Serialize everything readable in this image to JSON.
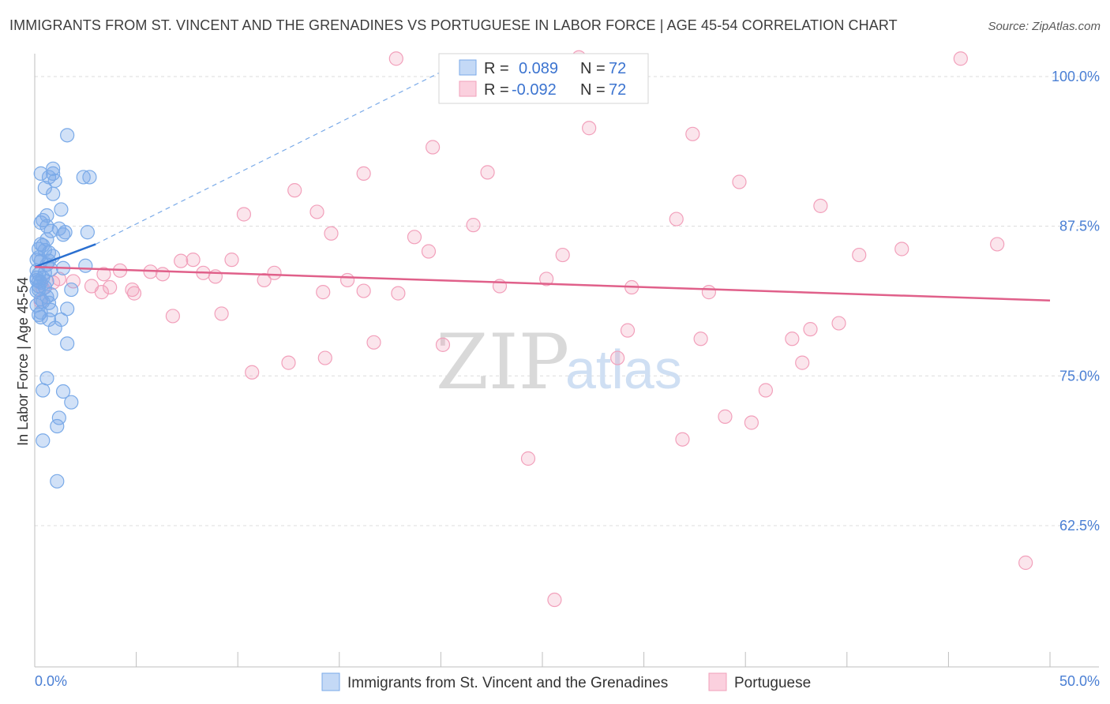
{
  "title": "IMMIGRANTS FROM ST. VINCENT AND THE GRENADINES VS PORTUGUESE IN LABOR FORCE | AGE 45-54 CORRELATION CHART",
  "source": "Source: ZipAtlas.com",
  "watermark": {
    "part1": "ZIP",
    "part2": "atlas"
  },
  "stats": [
    {
      "r_label": "R =",
      "r_value": "0.089",
      "n_label": "N =",
      "n_value": "72",
      "color": "#7aaae8"
    },
    {
      "r_label": "R =",
      "r_value": "-0.092",
      "n_label": "N =",
      "n_value": "72",
      "color": "#f2a0bb"
    }
  ],
  "chart_data": {
    "type": "scatter",
    "title": "IMMIGRANTS FROM ST. VINCENT AND THE GRENADINES VS PORTUGUESE IN LABOR FORCE | AGE 45-54 CORRELATION CHART",
    "xlabel": "",
    "ylabel": "In Labor Force | Age 45-54",
    "xlim": [
      0,
      50
    ],
    "ylim": [
      50.7,
      102.5
    ],
    "x_tick_labels": [
      "0.0%",
      "50.0%"
    ],
    "y_ticks": [
      62.5,
      75.0,
      87.5,
      100.0
    ],
    "y_tick_labels": [
      "62.5%",
      "75.0%",
      "87.5%",
      "100.0%"
    ],
    "grid": true,
    "legend_position": "bottom-center",
    "series": [
      {
        "name": "Immigrants from St. Vincent and the Grenadines",
        "color": "#7aaae8",
        "line_color": "#2a6fd0",
        "trend_solid": [
          [
            0,
            84.1
          ],
          [
            3,
            86.0
          ]
        ],
        "trend_dashed": [
          [
            3,
            86.0
          ],
          [
            20.5,
            100.8
          ]
        ],
        "points": [
          [
            1.6,
            95.1
          ],
          [
            0.9,
            92.3
          ],
          [
            0.3,
            91.9
          ],
          [
            0.9,
            91.9
          ],
          [
            0.7,
            91.6
          ],
          [
            1.0,
            91.3
          ],
          [
            2.4,
            91.6
          ],
          [
            2.7,
            91.6
          ],
          [
            0.5,
            90.7
          ],
          [
            0.9,
            90.2
          ],
          [
            1.3,
            88.9
          ],
          [
            0.6,
            88.4
          ],
          [
            0.3,
            87.8
          ],
          [
            0.4,
            88.0
          ],
          [
            0.6,
            87.5
          ],
          [
            0.8,
            87.1
          ],
          [
            1.2,
            87.3
          ],
          [
            1.5,
            87.0
          ],
          [
            1.4,
            86.8
          ],
          [
            2.6,
            87.0
          ],
          [
            0.6,
            86.4
          ],
          [
            0.2,
            85.6
          ],
          [
            0.3,
            86.0
          ],
          [
            0.5,
            85.5
          ],
          [
            0.7,
            85.3
          ],
          [
            0.1,
            84.7
          ],
          [
            0.3,
            84.6
          ],
          [
            0.6,
            84.3
          ],
          [
            0.8,
            83.9
          ],
          [
            0.1,
            83.8
          ],
          [
            0.2,
            83.5
          ],
          [
            0.4,
            83.2
          ],
          [
            0.1,
            83.0
          ],
          [
            0.3,
            82.8
          ],
          [
            0.2,
            82.5
          ],
          [
            0.1,
            82.1
          ],
          [
            0.5,
            82.4
          ],
          [
            1.8,
            82.2
          ],
          [
            0.6,
            81.6
          ],
          [
            0.3,
            81.4
          ],
          [
            0.7,
            81.1
          ],
          [
            0.1,
            80.9
          ],
          [
            1.6,
            80.6
          ],
          [
            0.8,
            80.5
          ],
          [
            0.2,
            80.1
          ],
          [
            0.3,
            79.9
          ],
          [
            0.7,
            79.7
          ],
          [
            1.3,
            79.7
          ],
          [
            1.0,
            79.0
          ],
          [
            1.6,
            77.7
          ],
          [
            0.6,
            74.8
          ],
          [
            0.4,
            73.8
          ],
          [
            1.4,
            73.7
          ],
          [
            1.8,
            72.8
          ],
          [
            1.2,
            71.5
          ],
          [
            1.1,
            70.8
          ],
          [
            0.4,
            69.6
          ],
          [
            1.1,
            66.2
          ],
          [
            2.5,
            84.2
          ],
          [
            0.2,
            84.9
          ],
          [
            0.4,
            85.9
          ],
          [
            0.9,
            85.0
          ],
          [
            1.4,
            84.0
          ],
          [
            0.2,
            82.9
          ],
          [
            0.5,
            83.6
          ],
          [
            0.3,
            80.3
          ],
          [
            0.8,
            81.8
          ],
          [
            0.2,
            82.2
          ],
          [
            0.6,
            82.9
          ],
          [
            0.4,
            81.2
          ],
          [
            0.1,
            83.2
          ],
          [
            0.7,
            84.6
          ]
        ]
      },
      {
        "name": "Portuguese",
        "color": "#f2a0bb",
        "line_color": "#e0608a",
        "trend_solid": [
          [
            0,
            84.1
          ],
          [
            50,
            81.3
          ]
        ],
        "points": [
          [
            17.8,
            101.5
          ],
          [
            26.8,
            101.6
          ],
          [
            45.6,
            101.5
          ],
          [
            27.3,
            95.7
          ],
          [
            32.4,
            95.2
          ],
          [
            19.6,
            94.1
          ],
          [
            16.2,
            91.9
          ],
          [
            22.3,
            92.0
          ],
          [
            34.7,
            91.2
          ],
          [
            12.8,
            90.5
          ],
          [
            38.7,
            89.2
          ],
          [
            10.3,
            88.5
          ],
          [
            13.9,
            88.7
          ],
          [
            21.6,
            87.6
          ],
          [
            31.6,
            88.1
          ],
          [
            14.6,
            86.9
          ],
          [
            18.7,
            86.6
          ],
          [
            19.4,
            85.4
          ],
          [
            47.4,
            86.0
          ],
          [
            42.7,
            85.6
          ],
          [
            40.6,
            85.1
          ],
          [
            26.0,
            85.1
          ],
          [
            7.2,
            84.6
          ],
          [
            7.8,
            84.7
          ],
          [
            9.7,
            84.7
          ],
          [
            4.2,
            83.8
          ],
          [
            5.7,
            83.7
          ],
          [
            6.3,
            83.5
          ],
          [
            8.3,
            83.6
          ],
          [
            8.9,
            83.3
          ],
          [
            11.8,
            83.6
          ],
          [
            3.4,
            83.5
          ],
          [
            1.9,
            82.9
          ],
          [
            0.9,
            82.8
          ],
          [
            0.4,
            82.3
          ],
          [
            2.8,
            82.5
          ],
          [
            3.7,
            82.4
          ],
          [
            3.3,
            82.0
          ],
          [
            4.8,
            82.2
          ],
          [
            4.9,
            81.9
          ],
          [
            11.3,
            83.0
          ],
          [
            15.4,
            83.0
          ],
          [
            16.2,
            82.1
          ],
          [
            14.2,
            82.0
          ],
          [
            17.9,
            81.9
          ],
          [
            22.9,
            82.5
          ],
          [
            25.2,
            83.1
          ],
          [
            29.4,
            82.4
          ],
          [
            33.2,
            82.0
          ],
          [
            0.3,
            81.2
          ],
          [
            6.8,
            80.0
          ],
          [
            9.2,
            80.2
          ],
          [
            29.2,
            78.8
          ],
          [
            32.8,
            78.1
          ],
          [
            37.3,
            78.1
          ],
          [
            38.2,
            78.9
          ],
          [
            39.6,
            79.4
          ],
          [
            16.7,
            77.8
          ],
          [
            20.1,
            77.6
          ],
          [
            28.7,
            76.5
          ],
          [
            14.3,
            76.5
          ],
          [
            12.5,
            76.1
          ],
          [
            10.7,
            75.3
          ],
          [
            37.8,
            76.1
          ],
          [
            36.0,
            73.8
          ],
          [
            34.0,
            71.6
          ],
          [
            35.3,
            71.1
          ],
          [
            31.9,
            69.7
          ],
          [
            24.3,
            68.1
          ],
          [
            48.8,
            59.4
          ],
          [
            25.6,
            56.3
          ],
          [
            1.2,
            83.1
          ]
        ]
      }
    ]
  },
  "legend": [
    {
      "label": "Immigrants from St. Vincent and the Grenadines",
      "color": "#7aaae8"
    },
    {
      "label": "Portuguese",
      "color": "#f2a0bb"
    }
  ]
}
